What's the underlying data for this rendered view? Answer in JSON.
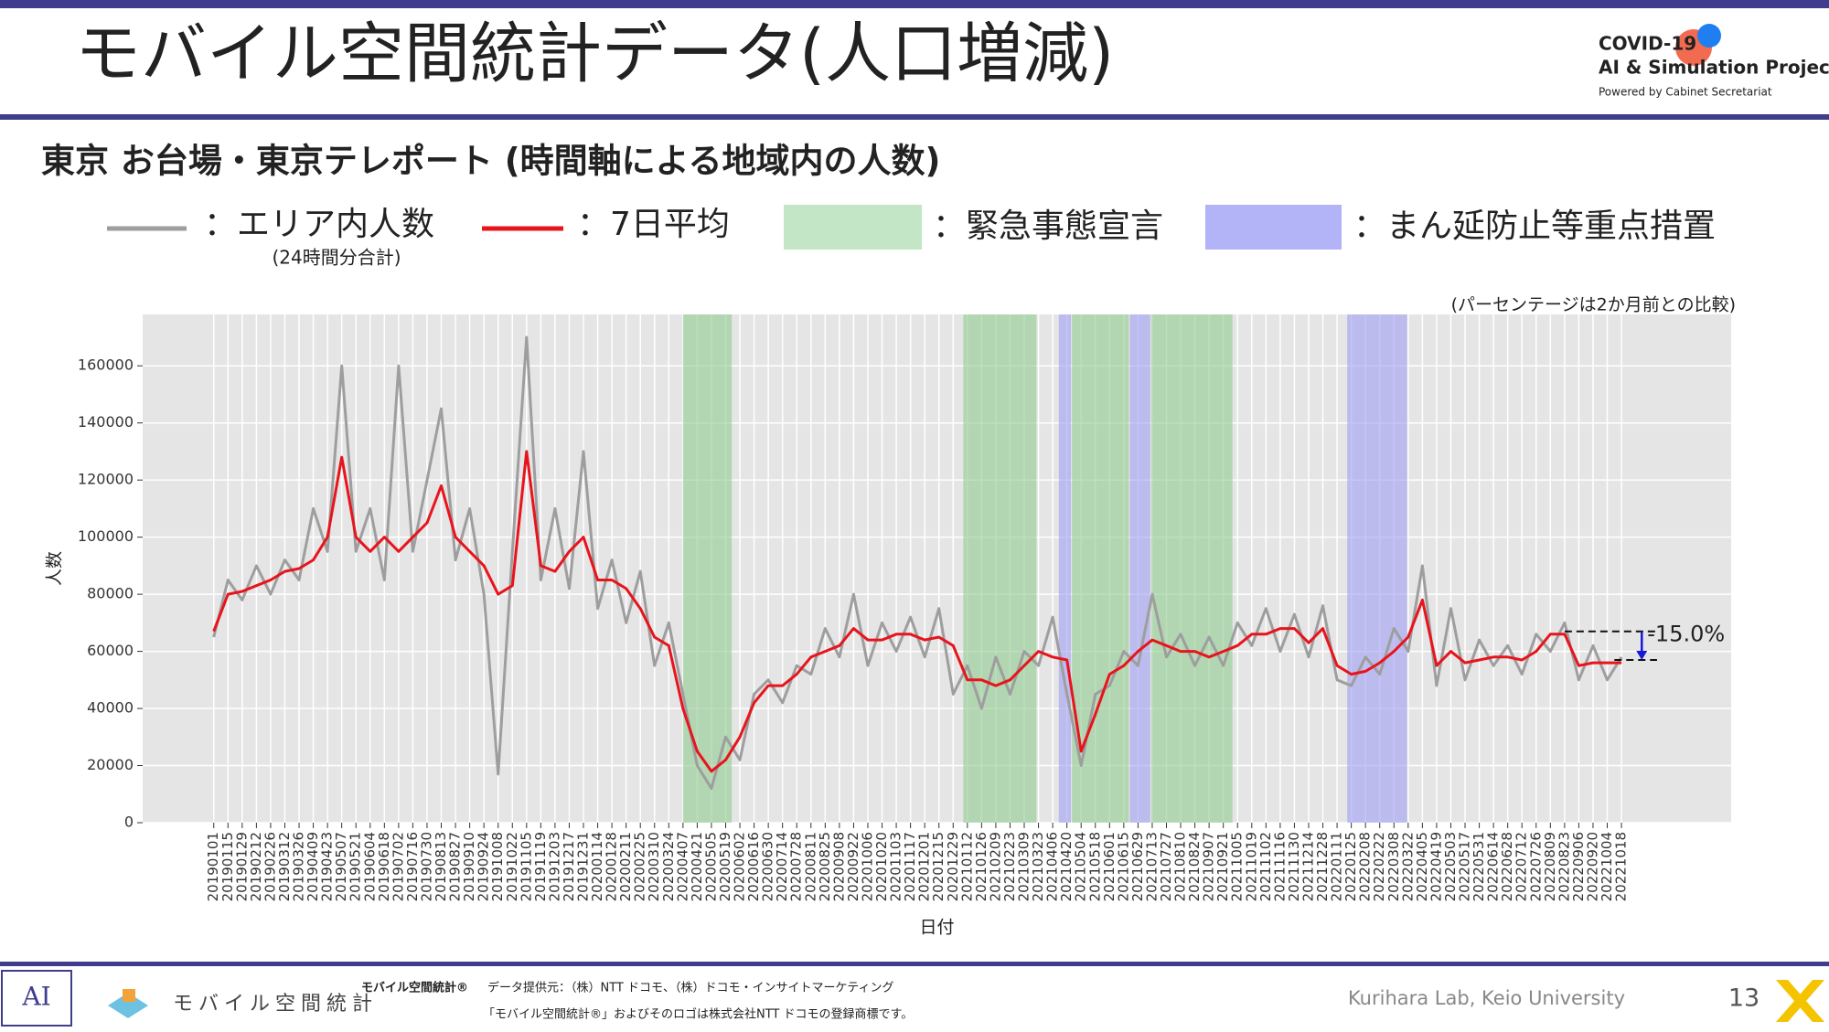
{
  "header": {
    "title": "モバイル空間統計データ(人口増減)",
    "logo_line1": "COVID-19",
    "logo_line2": "AI & Simulation Project",
    "logo_line3": "Powered by Cabinet Secretariat"
  },
  "chart_data": {
    "type": "line",
    "title": "東京 お台場・東京テレポート (時間軸による地域内の人数)",
    "note": "(パーセンテージは2か月前との比較)",
    "x_label": "日付",
    "y_label": "人数",
    "xlim": [
      "20181023",
      "20230203"
    ],
    "ylim": [
      0,
      178000
    ],
    "yticks": [
      0,
      20000,
      40000,
      60000,
      80000,
      100000,
      120000,
      140000,
      160000
    ],
    "grid": true,
    "x": [
      "20190101",
      "20190115",
      "20190129",
      "20190212",
      "20190226",
      "20190312",
      "20190326",
      "20190409",
      "20190423",
      "20190507",
      "20190521",
      "20190604",
      "20190618",
      "20190702",
      "20190716",
      "20190730",
      "20190813",
      "20190827",
      "20190910",
      "20190924",
      "20191008",
      "20191022",
      "20191105",
      "20191119",
      "20191203",
      "20191217",
      "20191231",
      "20200114",
      "20200128",
      "20200211",
      "20200225",
      "20200310",
      "20200324",
      "20200407",
      "20200421",
      "20200505",
      "20200519",
      "20200602",
      "20200616",
      "20200630",
      "20200714",
      "20200728",
      "20200811",
      "20200825",
      "20200908",
      "20200922",
      "20201006",
      "20201020",
      "20201103",
      "20201117",
      "20201201",
      "20201215",
      "20201229",
      "20210112",
      "20210126",
      "20210209",
      "20210223",
      "20210309",
      "20210323",
      "20210406",
      "20210420",
      "20210504",
      "20210518",
      "20210601",
      "20210615",
      "20210629",
      "20210713",
      "20210727",
      "20210810",
      "20210824",
      "20210907",
      "20210921",
      "20211005",
      "20211019",
      "20211102",
      "20211116",
      "20211130",
      "20211214",
      "20211228",
      "20220111",
      "20220125",
      "20220208",
      "20220222",
      "20220308",
      "20220322",
      "20220405",
      "20220419",
      "20220503",
      "20220517",
      "20220531",
      "20220614",
      "20220628",
      "20220712",
      "20220726",
      "20220809",
      "20220823",
      "20220906",
      "20220920",
      "20221004",
      "20221018"
    ],
    "series": [
      {
        "name": "：エリア内人数",
        "sublabel": "(24時間分合計)",
        "color": "#9e9e9e",
        "width": 3,
        "values": [
          65000,
          85000,
          78000,
          90000,
          80000,
          92000,
          85000,
          110000,
          95000,
          160000,
          95000,
          110000,
          85000,
          160000,
          95000,
          120000,
          145000,
          92000,
          110000,
          80000,
          17000,
          95000,
          170000,
          85000,
          110000,
          82000,
          130000,
          75000,
          92000,
          70000,
          88000,
          55000,
          70000,
          45000,
          20000,
          12000,
          30000,
          22000,
          45000,
          50000,
          42000,
          55000,
          52000,
          68000,
          58000,
          80000,
          55000,
          70000,
          60000,
          72000,
          58000,
          75000,
          45000,
          55000,
          40000,
          58000,
          45000,
          60000,
          55000,
          72000,
          45000,
          20000,
          45000,
          48000,
          60000,
          55000,
          80000,
          58000,
          66000,
          55000,
          65000,
          55000,
          70000,
          62000,
          75000,
          60000,
          73000,
          58000,
          76000,
          50000,
          48000,
          58000,
          52000,
          68000,
          60000,
          90000,
          48000,
          75000,
          50000,
          64000,
          55000,
          62000,
          52000,
          66000,
          60000,
          70000,
          50000,
          62000,
          50000,
          58000
        ]
      },
      {
        "name": "：7日平均",
        "color": "#e8141c",
        "width": 3,
        "values": [
          67000,
          80000,
          81000,
          83000,
          85000,
          88000,
          89000,
          92000,
          100000,
          128000,
          100000,
          95000,
          100000,
          95000,
          100000,
          105000,
          118000,
          100000,
          95000,
          90000,
          80000,
          83000,
          130000,
          90000,
          88000,
          95000,
          100000,
          85000,
          85000,
          82000,
          75000,
          65000,
          62000,
          40000,
          25000,
          18000,
          22000,
          30000,
          42000,
          48000,
          48000,
          52000,
          58000,
          60000,
          62000,
          68000,
          64000,
          64000,
          66000,
          66000,
          64000,
          65000,
          62000,
          50000,
          50000,
          48000,
          50000,
          55000,
          60000,
          58000,
          57000,
          25000,
          38000,
          52000,
          55000,
          60000,
          64000,
          62000,
          60000,
          60000,
          58000,
          60000,
          62000,
          66000,
          66000,
          68000,
          68000,
          63000,
          68000,
          55000,
          52000,
          53000,
          56000,
          60000,
          65000,
          78000,
          55000,
          60000,
          56000,
          57000,
          58000,
          58000,
          57000,
          60000,
          66000,
          66000,
          55000,
          56000,
          56000,
          56000
        ]
      }
    ],
    "shaded_regions": [
      {
        "name": "：緊急事態宣言",
        "color": "#8fc98f",
        "legend_color": "#c2e6c6",
        "spans": [
          [
            "20200407",
            "20200525"
          ],
          [
            "20210108",
            "20210321"
          ],
          [
            "20210425",
            "20210620"
          ],
          [
            "20210712",
            "20210930"
          ]
        ]
      },
      {
        "name": "：まん延防止等重点措置",
        "color": "#9f9ff2",
        "legend_color": "#b3b3f7",
        "spans": [
          [
            "20210412",
            "20210424"
          ],
          [
            "20210621",
            "20210711"
          ],
          [
            "20220121",
            "20220321"
          ]
        ]
      }
    ],
    "annotation": {
      "label": "-15.0%",
      "upper": 67000,
      "lower": 57000,
      "upper_from": "20220823",
      "lower_from": "20221011",
      "to": "20221122",
      "arrow_at": "20221107"
    }
  },
  "footer": {
    "logo_text": "モバイル空間統計",
    "brand": "モバイル空間統計®",
    "provider": "データ提供元：（株）NTT ドコモ、（株）ドコモ・インサイトマーケティング",
    "trademark": "「モバイル空間統計®」およびそのロゴは株式会社NTT ドコモの登録商標です。",
    "lab": "Kurihara Lab, Keio University",
    "page": "13"
  }
}
